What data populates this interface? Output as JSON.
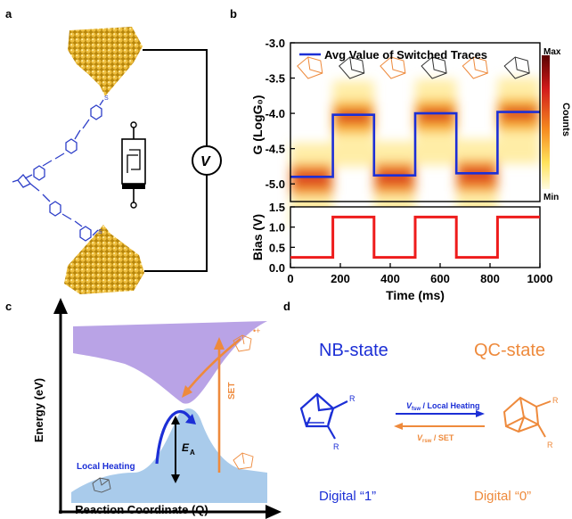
{
  "panels": {
    "a": {
      "label": "a",
      "voltage_symbol": "V",
      "molecule_atom": "S"
    },
    "b": {
      "label": "b"
    },
    "c": {
      "label": "c"
    },
    "d": {
      "label": "d"
    }
  },
  "chart_data": [
    {
      "type": "heatmap",
      "ylabel": "G (LogG₀)",
      "legend": "Avg Value of Switched Traces",
      "legend_placement": "top",
      "ylim": [
        -5.25,
        -3.0
      ],
      "yticks": [
        "-3.0",
        "-3.5",
        "-4.0",
        "-4.5",
        "-5.0"
      ],
      "colorbar": {
        "title": "Counts",
        "max": "Max",
        "min": "Min"
      },
      "series": [
        {
          "name": "Avg Value of Switched Traces",
          "x": [
            0,
            170,
            170,
            335,
            335,
            500,
            500,
            665,
            665,
            830,
            830,
            1000
          ],
          "y": [
            -4.9,
            -4.9,
            -4.02,
            -4.02,
            -4.88,
            -4.88,
            -4.0,
            -4.0,
            -4.85,
            -4.85,
            -3.98,
            -3.98
          ],
          "color": "#1c2fd6"
        }
      ]
    },
    {
      "type": "line",
      "xlabel": "Time (ms)",
      "ylabel": "Bias (V)",
      "xlim": [
        0,
        1000
      ],
      "ylim": [
        0,
        1.5
      ],
      "xticks": [
        "0",
        "200",
        "400",
        "600",
        "800",
        "1000"
      ],
      "yticks": [
        "0.0",
        "0.5",
        "1.0",
        "1.5"
      ],
      "series": [
        {
          "x": [
            0,
            170,
            170,
            335,
            335,
            500,
            500,
            665,
            665,
            830,
            830,
            1000
          ],
          "y": [
            0.25,
            0.25,
            1.25,
            1.25,
            0.25,
            0.25,
            1.25,
            1.25,
            0.25,
            0.25,
            1.25,
            1.25
          ],
          "color": "#ee1c1c"
        }
      ]
    },
    {
      "type": "area",
      "xlabel": "Reaction Coordinate (Q)",
      "ylabel": "Energy (eV)",
      "annotations": [
        "Local Heating",
        "E",
        "A",
        "SET"
      ]
    }
  ],
  "diagram_d": {
    "nb_state": "NB-state",
    "qc_state": "QC-state",
    "digital_1": "Digital “1”",
    "digital_0": "Digital “0”",
    "forward_v": "V",
    "forward_sub": "fsw",
    "forward_rest": " / Local Heating",
    "reverse_v": "V",
    "reverse_sub": "rsw",
    "reverse_rest": " / SET",
    "r_label": "R"
  },
  "colors": {
    "blue": "#1c2fd6",
    "orange": "#ee8a3c",
    "red": "#ee1c1c",
    "purple": "#b9a3e6",
    "lightblue": "#a9cbeb",
    "gold": "#d9a520"
  }
}
